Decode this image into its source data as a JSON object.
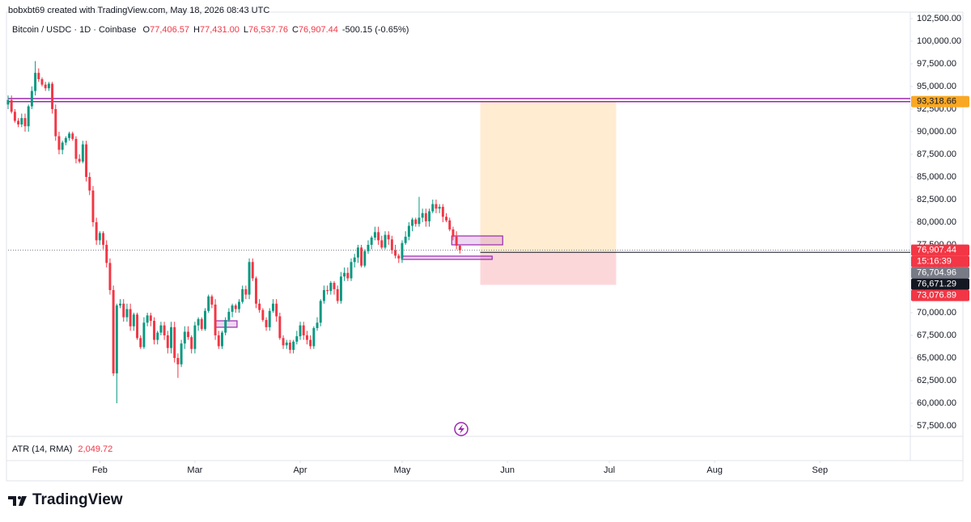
{
  "header": {
    "credit": "bobxbt69 created with TradingView.com, May 18, 2026 08:43 UTC",
    "symbol": "Bitcoin / USDC · 1D · Coinbase",
    "ohlc": [
      {
        "key": "O",
        "value": "77,406.57"
      },
      {
        "key": "H",
        "value": "77,431.00"
      },
      {
        "key": "L",
        "value": "76,537.76"
      },
      {
        "key": "C",
        "value": "76,907.44"
      }
    ],
    "change": "-500.15 (-0.65%)"
  },
  "chart_data": {
    "type": "candlestick",
    "up_color": "#089981",
    "down_color": "#f23645",
    "grid": false,
    "x": [
      4,
      5,
      6,
      7,
      8,
      9,
      10,
      11,
      12,
      13,
      14,
      15,
      16,
      17,
      18,
      19,
      20,
      21,
      22,
      23,
      24,
      25,
      26,
      27,
      28,
      29,
      30,
      31,
      32,
      33,
      34,
      35,
      36,
      37,
      38,
      39,
      40,
      41,
      42,
      43,
      44,
      45,
      46,
      47,
      48,
      49,
      50,
      51,
      52,
      53,
      54,
      55,
      56,
      57,
      58,
      59,
      60,
      61,
      62,
      63,
      64,
      65,
      66,
      67,
      68,
      69,
      70,
      71,
      72,
      73,
      74,
      75,
      76,
      77,
      78,
      79,
      80,
      81,
      82,
      83,
      84,
      85,
      86,
      87,
      88,
      89,
      90,
      91,
      92,
      93,
      94,
      95,
      96,
      97,
      98,
      99,
      100,
      101,
      102,
      103,
      104,
      105,
      106,
      107,
      108,
      109,
      110,
      111,
      112,
      113,
      114,
      115,
      116,
      117,
      118,
      119,
      120,
      121,
      122,
      123,
      124,
      125,
      126,
      127,
      128,
      129,
      130,
      131,
      132,
      133,
      134,
      135,
      136,
      137
    ],
    "open": [
      93000,
      93500,
      92200,
      91200,
      90800,
      91500,
      90600,
      92800,
      94500,
      96500,
      95800,
      95200,
      94800,
      95300,
      92500,
      89500,
      88000,
      88800,
      89300,
      89800,
      89200,
      87000,
      86700,
      88600,
      85000,
      83500,
      80000,
      78000,
      78800,
      77500,
      75500,
      72500,
      63300,
      70800,
      71000,
      69500,
      70400,
      68500,
      69800,
      67200,
      66200,
      68900,
      69700,
      69100,
      67000,
      67800,
      68600,
      67500,
      66100,
      68400,
      65000,
      64300,
      66600,
      67900,
      67300,
      66000,
      68600,
      69300,
      68200,
      70200,
      71800,
      70900,
      67500,
      66300,
      67800,
      69200,
      70100,
      70800,
      70400,
      71200,
      72600,
      72000,
      75600,
      73800,
      71000,
      70300,
      69200,
      68400,
      70200,
      71000,
      69600,
      67200,
      66400,
      66700,
      65900,
      66800,
      67400,
      68600,
      67500,
      67000,
      66300,
      68300,
      68900,
      71300,
      72500,
      72400,
      73300,
      72600,
      71300,
      74000,
      74400,
      73800,
      75600,
      76100,
      77200,
      75200,
      76800,
      77500,
      78300,
      78900,
      78000,
      77200,
      78600,
      78100,
      76900,
      76300,
      76000,
      77700,
      78400,
      79600,
      80300,
      79800,
      80500,
      81000,
      80100,
      81200,
      82000,
      81500,
      81700,
      80600,
      80200,
      79200,
      78400,
      77406.57
    ],
    "high": [
      94000,
      94000,
      92500,
      91500,
      92000,
      92000,
      93000,
      95000,
      97800,
      97000,
      96000,
      95500,
      95500,
      95500,
      93000,
      90000,
      89000,
      89500,
      90000,
      90000,
      89500,
      87500,
      89000,
      89000,
      85500,
      84000,
      80500,
      79000,
      79000,
      78000,
      76000,
      73000,
      71000,
      71500,
      71500,
      71000,
      71000,
      70000,
      70000,
      67500,
      69500,
      70000,
      70000,
      69500,
      68000,
      69000,
      69000,
      68000,
      69000,
      69000,
      65500,
      67000,
      68500,
      68500,
      67500,
      69000,
      69500,
      69500,
      70500,
      72000,
      72000,
      71500,
      68000,
      68000,
      69500,
      70500,
      71000,
      71000,
      71500,
      73000,
      73000,
      76000,
      76000,
      74000,
      71500,
      70500,
      69500,
      70500,
      71500,
      71500,
      70000,
      67500,
      67000,
      67000,
      67000,
      68000,
      69000,
      69000,
      68000,
      67500,
      68500,
      69500,
      71500,
      73000,
      73000,
      73500,
      73500,
      73000,
      74500,
      75000,
      75000,
      76000,
      76500,
      77500,
      77500,
      77000,
      78000,
      78500,
      79500,
      79500,
      78500,
      79000,
      79000,
      78500,
      77500,
      76500,
      78000,
      79000,
      80000,
      80500,
      80500,
      82800,
      81500,
      81500,
      81500,
      82500,
      82500,
      82000,
      82000,
      81000,
      80500,
      79500,
      79000,
      77431
    ],
    "low": [
      92500,
      92000,
      91000,
      90500,
      90500,
      90000,
      90000,
      92500,
      94000,
      95500,
      95000,
      94500,
      94500,
      92000,
      89000,
      87500,
      87500,
      88500,
      89000,
      89000,
      86500,
      86500,
      86500,
      84500,
      83000,
      79500,
      77500,
      77500,
      77000,
      75000,
      72000,
      63000,
      60000,
      70500,
      69000,
      69000,
      68000,
      68000,
      67000,
      66000,
      66000,
      68500,
      68500,
      66500,
      66500,
      67500,
      67000,
      65500,
      65500,
      64500,
      62800,
      64000,
      66000,
      67000,
      65500,
      65500,
      68000,
      68000,
      68000,
      70000,
      70500,
      67000,
      66000,
      66000,
      67500,
      69000,
      69500,
      70000,
      70000,
      71000,
      71500,
      71500,
      73500,
      70500,
      70000,
      69000,
      68000,
      68000,
      70000,
      69000,
      67000,
      66000,
      66000,
      65500,
      65500,
      66500,
      67000,
      67000,
      66500,
      66000,
      66000,
      68000,
      68500,
      71000,
      72000,
      72000,
      72000,
      71000,
      71000,
      73500,
      73500,
      73500,
      75000,
      75500,
      75000,
      75000,
      76500,
      77000,
      78000,
      77500,
      77000,
      77000,
      77500,
      76500,
      76000,
      75500,
      75500,
      77500,
      78000,
      79000,
      79500,
      79500,
      80000,
      79500,
      79500,
      81000,
      81000,
      81000,
      80000,
      80000,
      79000,
      78000,
      77000,
      76537.76
    ],
    "close": [
      93500,
      92200,
      91200,
      90800,
      91500,
      90600,
      92800,
      94500,
      96500,
      95800,
      95200,
      94800,
      95300,
      92500,
      89500,
      88000,
      88800,
      89300,
      89800,
      89200,
      87000,
      86700,
      88600,
      85000,
      83500,
      80000,
      78000,
      78800,
      77500,
      75500,
      72500,
      63300,
      70800,
      71000,
      69500,
      70400,
      68500,
      69800,
      67200,
      66200,
      68900,
      69700,
      69100,
      67000,
      67800,
      68600,
      67500,
      66100,
      68400,
      65000,
      64300,
      66600,
      67900,
      67300,
      66000,
      68600,
      69300,
      68200,
      70200,
      71800,
      70900,
      67500,
      66300,
      67800,
      69200,
      70100,
      70800,
      70400,
      71200,
      72600,
      72000,
      75600,
      73800,
      71000,
      70300,
      69200,
      68400,
      70200,
      71000,
      69600,
      67200,
      66400,
      66700,
      65900,
      66800,
      67400,
      68600,
      67500,
      67000,
      66300,
      68300,
      68900,
      71300,
      72500,
      72400,
      73300,
      72600,
      71300,
      74000,
      74400,
      73800,
      75600,
      76100,
      77200,
      75200,
      76800,
      77500,
      78300,
      78900,
      78000,
      77200,
      78600,
      78100,
      76900,
      76300,
      76000,
      77700,
      78400,
      79600,
      80300,
      79800,
      80500,
      81000,
      80100,
      81200,
      82000,
      81500,
      81700,
      80600,
      80200,
      79200,
      78400,
      77400,
      76907.44
    ],
    "xlim": [
      4,
      269.6
    ],
    "xticks": [
      {
        "value": 31,
        "label": "Feb"
      },
      {
        "value": 59,
        "label": "Mar"
      },
      {
        "value": 90,
        "label": "Apr"
      },
      {
        "value": 120,
        "label": "May"
      },
      {
        "value": 151,
        "label": "Jun"
      },
      {
        "value": 181,
        "label": "Jul"
      },
      {
        "value": 212,
        "label": "Aug"
      },
      {
        "value": 243,
        "label": "Sep"
      }
    ],
    "ylim": [
      56340,
      103210
    ],
    "yticks": [
      {
        "value": 57500,
        "label": "57,500.00"
      },
      {
        "value": 60000,
        "label": "60,000.00"
      },
      {
        "value": 62500,
        "label": "62,500.00"
      },
      {
        "value": 65000,
        "label": "65,000.00"
      },
      {
        "value": 67500,
        "label": "67,500.00"
      },
      {
        "value": 70000,
        "label": "70,000.00"
      },
      {
        "value": 72500,
        "label": "72,500.00"
      },
      {
        "value": 75000,
        "label": "75,000.00"
      },
      {
        "value": 77500,
        "label": "77,500.00"
      },
      {
        "value": 80000,
        "label": "80,000.00"
      },
      {
        "value": 82500,
        "label": "82,500.00"
      },
      {
        "value": 85000,
        "label": "85,000.00"
      },
      {
        "value": 87500,
        "label": "87,500.00"
      },
      {
        "value": 90000,
        "label": "90,000.00"
      },
      {
        "value": 92500,
        "label": "92,500.00"
      },
      {
        "value": 95000,
        "label": "95,000.00"
      },
      {
        "value": 97500,
        "label": "97,500.00"
      },
      {
        "value": 100000,
        "label": "100,000.00"
      },
      {
        "value": 102500,
        "label": "102,500.00"
      }
    ],
    "levels": [
      {
        "value": 93660,
        "color": "#9c27b0"
      },
      {
        "value": 93318.66,
        "label": "93,318.66",
        "color": "#9c27b0",
        "badge_color": "#f9a825"
      }
    ],
    "position": {
      "from": 143,
      "to": 183,
      "target": 93318.66,
      "entry": 76704.96,
      "stop": 73076.89
    },
    "zones": [
      {
        "from": 65.2,
        "to": 71.4,
        "top": 69107,
        "bottom": 68393
      },
      {
        "from": 119.9,
        "to": 146.5,
        "top": 76250,
        "bottom": 75890
      },
      {
        "from": 134.6,
        "to": 149.6,
        "top": 78480,
        "bottom": 77500
      }
    ],
    "current_price": 76907.44,
    "price_labels": [
      {
        "value": 76907.44,
        "label": "76,907.44",
        "color": "#f23645"
      },
      {
        "value": 76704.96,
        "label": "76,704.96",
        "color": "#787b86"
      },
      {
        "value": 76671.29,
        "label": "76,671.29",
        "color": "#131722"
      },
      {
        "value": 73076.89,
        "label": "73,076.89",
        "color": "#f23645"
      }
    ],
    "countdown": "15:16:39"
  },
  "indicator": {
    "name": "ATR (14, RMA)",
    "value": "2,049.72"
  },
  "footer": {
    "brand": "TradingView"
  }
}
